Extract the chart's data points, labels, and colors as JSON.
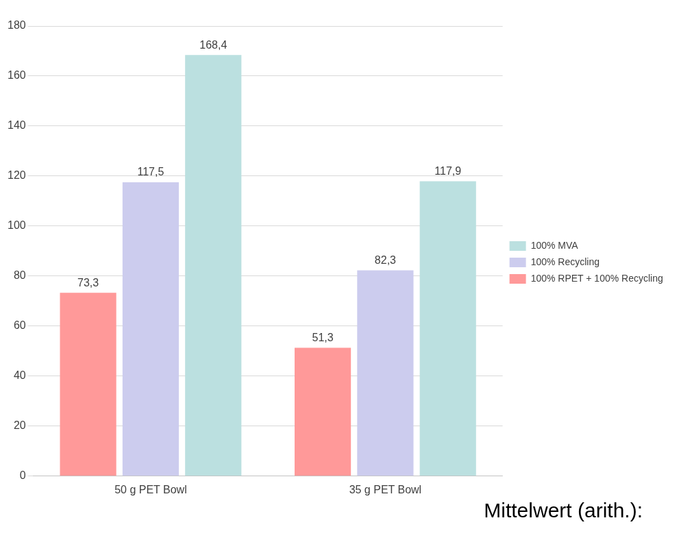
{
  "chart_data": {
    "type": "bar",
    "categories": [
      "50 g PET Bowl",
      "35 g PET Bowl"
    ],
    "series": [
      {
        "name": "100% RPET + 100% Recycling",
        "color": "#ff9999",
        "values": [
          73.3,
          51.3
        ],
        "value_labels": [
          "73,3",
          "51,3"
        ]
      },
      {
        "name": "100% Recycling",
        "color": "#ccccee",
        "values": [
          117.5,
          82.3
        ],
        "value_labels": [
          "117,5",
          "82,3"
        ]
      },
      {
        "name": "100% MVA",
        "color": "#bbe0e0",
        "values": [
          168.4,
          117.9
        ],
        "value_labels": [
          "168,4",
          "117,9"
        ]
      }
    ],
    "ylim": [
      0,
      180
    ],
    "yticks": [
      0,
      20,
      40,
      60,
      80,
      100,
      120,
      140,
      160,
      180
    ],
    "grid": "y",
    "legend": "right",
    "annotations": [
      "Mittelwert (arith.):"
    ]
  }
}
